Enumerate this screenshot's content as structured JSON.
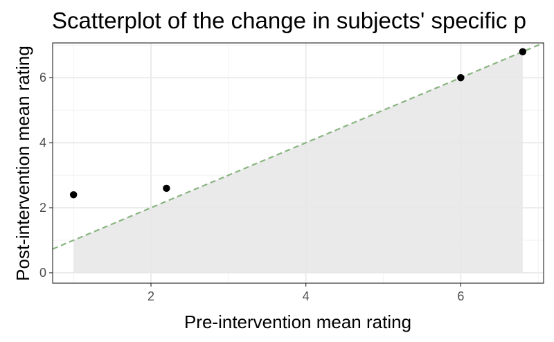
{
  "chart_data": {
    "type": "scatter",
    "title": "Scatterplot of the change in subjects' specific p",
    "xlabel": "Pre-intervention mean rating",
    "ylabel": "Post-intervention mean rating",
    "xlim": [
      0.73,
      7.07
    ],
    "ylim": [
      -0.32,
      7.07
    ],
    "x_ticks": [
      2,
      4,
      6
    ],
    "y_ticks": [
      0,
      2,
      4,
      6
    ],
    "grid": true,
    "points": [
      {
        "x": 1.0,
        "y": 2.4
      },
      {
        "x": 2.2,
        "y": 2.6
      },
      {
        "x": 6.0,
        "y": 6.0
      },
      {
        "x": 6.8,
        "y": 6.8
      }
    ],
    "reference_line": {
      "style": "dashed",
      "color": "#88b47f",
      "slope": 1,
      "intercept": 0
    },
    "shaded_region": {
      "color": "#e6e6e6",
      "x_start": 1.0,
      "x_end": 6.8,
      "description": "below identity line"
    },
    "colors": {
      "point": "#000000",
      "panel_border": "#333333",
      "grid_major": "#ebebeb"
    }
  }
}
